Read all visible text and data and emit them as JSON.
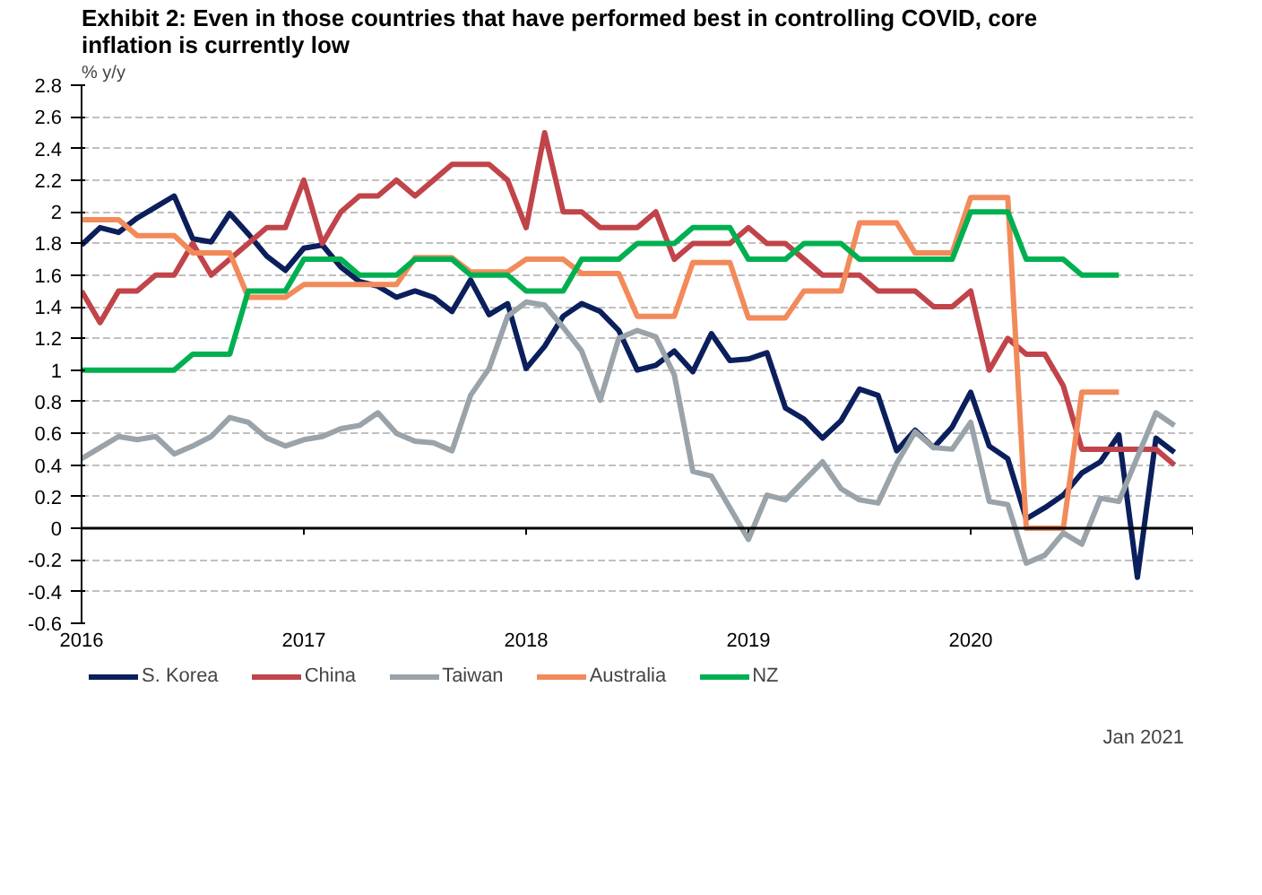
{
  "chart_data": {
    "type": "line",
    "title": "Exhibit 2: Even in those countries that have performed best in controlling COVID, core inflation is currently low",
    "ylabel": "% y/y",
    "annotations": [
      "Jan 2021"
    ],
    "x": [
      "2016-01",
      "2016-02",
      "2016-03",
      "2016-04",
      "2016-05",
      "2016-06",
      "2016-07",
      "2016-08",
      "2016-09",
      "2016-10",
      "2016-11",
      "2016-12",
      "2017-01",
      "2017-02",
      "2017-03",
      "2017-04",
      "2017-05",
      "2017-06",
      "2017-07",
      "2017-08",
      "2017-09",
      "2017-10",
      "2017-11",
      "2017-12",
      "2018-01",
      "2018-02",
      "2018-03",
      "2018-04",
      "2018-05",
      "2018-06",
      "2018-07",
      "2018-08",
      "2018-09",
      "2018-10",
      "2018-11",
      "2018-12",
      "2019-01",
      "2019-02",
      "2019-03",
      "2019-04",
      "2019-05",
      "2019-06",
      "2019-07",
      "2019-08",
      "2019-09",
      "2019-10",
      "2019-11",
      "2019-12",
      "2020-01",
      "2020-02",
      "2020-03",
      "2020-04",
      "2020-05",
      "2020-06",
      "2020-07",
      "2020-08",
      "2020-09",
      "2020-10",
      "2020-11",
      "2020-12"
    ],
    "xlim": [
      "2016",
      "2021"
    ],
    "xticks": [
      {
        "value": "2016",
        "label": "2016"
      },
      {
        "value": "2017",
        "label": "2017"
      },
      {
        "value": "2018",
        "label": "2018"
      },
      {
        "value": "2019",
        "label": "2019"
      },
      {
        "value": "2020",
        "label": "2020"
      },
      {
        "value": "2021",
        "label": null
      }
    ],
    "ylim": [
      -0.6,
      2.8
    ],
    "yticks": [
      -0.6,
      -0.4,
      -0.2,
      0,
      0.2,
      0.4,
      0.6,
      0.8,
      1,
      1.2,
      1.4,
      1.6,
      1.8,
      2,
      2.2,
      2.4,
      2.6,
      2.8
    ],
    "grid": "y",
    "legend": "bottom",
    "line_style": "solid",
    "ref_lines": [
      {
        "axis": "y",
        "value": 0,
        "color": "#000000"
      }
    ],
    "series": [
      {
        "name": "S. Korea",
        "color": "#0b1f5c",
        "values": [
          1.79,
          1.9,
          1.87,
          1.96,
          2.03,
          2.1,
          1.83,
          1.81,
          1.99,
          1.86,
          1.72,
          1.63,
          1.77,
          1.79,
          1.65,
          1.56,
          1.53,
          1.46,
          1.5,
          1.46,
          1.37,
          1.57,
          1.35,
          1.42,
          1.01,
          1.15,
          1.34,
          1.42,
          1.37,
          1.25,
          1.0,
          1.03,
          1.12,
          0.99,
          1.23,
          1.06,
          1.07,
          1.11,
          0.76,
          0.69,
          0.57,
          0.68,
          0.88,
          0.84,
          0.49,
          0.62,
          0.51,
          0.64,
          0.86,
          0.52,
          0.44,
          0.06,
          0.13,
          0.21,
          0.35,
          0.42,
          0.59,
          -0.31,
          0.57,
          0.48
        ]
      },
      {
        "name": "China",
        "color": "#c0444a",
        "values": [
          1.5,
          1.3,
          1.5,
          1.5,
          1.6,
          1.6,
          1.8,
          1.6,
          1.7,
          1.8,
          1.9,
          1.9,
          2.2,
          1.8,
          2.0,
          2.1,
          2.1,
          2.2,
          2.1,
          2.2,
          2.3,
          2.3,
          2.3,
          2.2,
          1.9,
          2.5,
          2.0,
          2.0,
          1.9,
          1.9,
          1.9,
          2.0,
          1.7,
          1.8,
          1.8,
          1.8,
          1.9,
          1.8,
          1.8,
          1.7,
          1.6,
          1.6,
          1.6,
          1.5,
          1.5,
          1.5,
          1.4,
          1.4,
          1.5,
          1.0,
          1.2,
          1.1,
          1.1,
          0.9,
          0.5,
          0.5,
          0.5,
          0.5,
          0.5,
          0.4
        ]
      },
      {
        "name": "Taiwan",
        "color": "#9aa3a9",
        "values": [
          0.44,
          0.51,
          0.58,
          0.56,
          0.58,
          0.47,
          0.52,
          0.58,
          0.7,
          0.67,
          0.57,
          0.52,
          0.56,
          0.58,
          0.63,
          0.65,
          0.73,
          0.6,
          0.55,
          0.54,
          0.49,
          0.84,
          1.01,
          1.34,
          1.43,
          1.41,
          1.27,
          1.12,
          0.81,
          1.2,
          1.25,
          1.21,
          0.97,
          0.36,
          0.33,
          0.13,
          -0.07,
          0.21,
          0.18,
          0.3,
          0.42,
          0.25,
          0.18,
          0.16,
          0.41,
          0.61,
          0.51,
          0.5,
          0.67,
          0.17,
          0.15,
          -0.22,
          -0.17,
          -0.03,
          -0.1,
          0.19,
          0.17,
          0.45,
          0.73,
          0.65
        ]
      },
      {
        "name": "Australia",
        "color": "#f28a5a",
        "values": [
          1.95,
          1.95,
          1.95,
          1.85,
          1.85,
          1.85,
          1.74,
          1.74,
          1.74,
          1.46,
          1.46,
          1.46,
          1.54,
          1.54,
          1.54,
          1.54,
          1.54,
          1.54,
          1.71,
          1.71,
          1.71,
          1.62,
          1.62,
          1.62,
          1.7,
          1.7,
          1.7,
          1.61,
          1.61,
          1.61,
          1.34,
          1.34,
          1.34,
          1.68,
          1.68,
          1.68,
          1.33,
          1.33,
          1.33,
          1.5,
          1.5,
          1.5,
          1.93,
          1.93,
          1.93,
          1.74,
          1.74,
          1.74,
          2.09,
          2.09,
          2.09,
          0.0,
          0.0,
          0.0,
          0.86,
          0.86,
          0.86,
          null,
          null,
          null
        ]
      },
      {
        "name": "NZ",
        "color": "#00b050",
        "values": [
          1.0,
          1.0,
          1.0,
          1.0,
          1.0,
          1.0,
          1.1,
          1.1,
          1.1,
          1.5,
          1.5,
          1.5,
          1.7,
          1.7,
          1.7,
          1.6,
          1.6,
          1.6,
          1.7,
          1.7,
          1.7,
          1.6,
          1.6,
          1.6,
          1.5,
          1.5,
          1.5,
          1.7,
          1.7,
          1.7,
          1.8,
          1.8,
          1.8,
          1.9,
          1.9,
          1.9,
          1.7,
          1.7,
          1.7,
          1.8,
          1.8,
          1.8,
          1.7,
          1.7,
          1.7,
          1.7,
          1.7,
          1.7,
          2.0,
          2.0,
          2.0,
          1.7,
          1.7,
          1.7,
          1.6,
          1.6,
          1.6,
          null,
          null,
          null
        ]
      }
    ]
  }
}
